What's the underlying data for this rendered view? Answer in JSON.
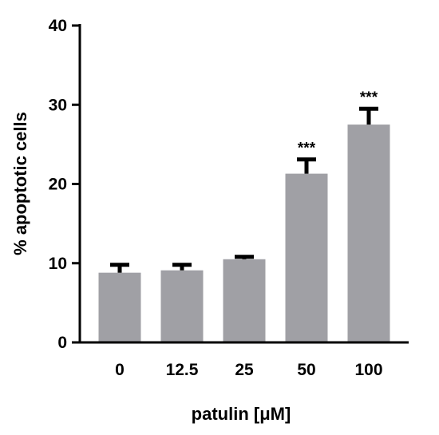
{
  "chart_data": {
    "type": "bar",
    "title": "",
    "xlabel": "patulin [μM]",
    "ylabel": "% apoptotic cells",
    "categories": [
      "0",
      "12.5",
      "25",
      "50",
      "100"
    ],
    "values": [
      8.8,
      9.1,
      10.5,
      21.3,
      27.5
    ],
    "error_upper": [
      1.0,
      0.7,
      0.3,
      1.8,
      2.0
    ],
    "annotations": [
      "",
      "",
      "",
      "***",
      "***"
    ],
    "ylim": [
      0,
      40
    ],
    "yticks": [
      "0",
      "10",
      "20",
      "30",
      "40"
    ],
    "ytick_values": [
      0,
      10,
      20,
      30,
      40
    ],
    "grid": false,
    "legend": "none",
    "colors": {
      "bar": "#a0a0a5",
      "error_bar": "#000000",
      "axis": "#000000"
    }
  }
}
